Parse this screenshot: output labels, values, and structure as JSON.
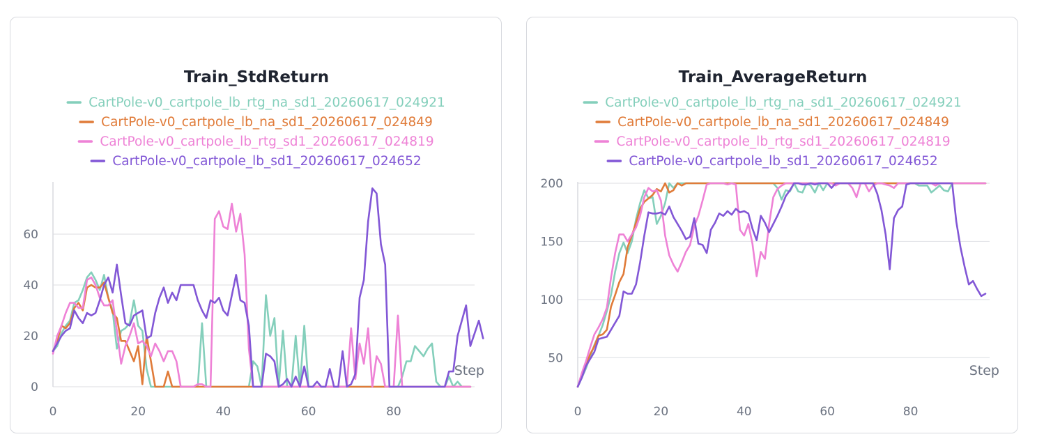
{
  "chart_data": [
    {
      "type": "line",
      "title": "Train_StdReturn",
      "xlabel": "Step",
      "ylabel": "",
      "xlim": [
        0,
        99
      ],
      "ylim": [
        0,
        80
      ],
      "xticks": [
        0,
        20,
        40,
        60,
        80
      ],
      "yticks": [
        0,
        20,
        40,
        60
      ],
      "grid": true,
      "legend_position": "top-center",
      "series": [
        {
          "name": "CartPole-v0_cartpole_lb_rtg_na_sd1_20260617_024921",
          "color": "#84cfbb",
          "x_start": 0,
          "values": [
            14,
            16,
            21,
            24,
            26,
            33,
            34,
            38,
            43,
            45,
            42,
            38,
            44,
            35,
            30,
            15,
            22,
            23,
            25,
            34,
            24,
            22,
            7,
            0,
            0,
            0,
            0,
            0,
            0,
            0,
            0,
            0,
            0,
            0,
            0,
            25,
            0,
            0,
            0,
            0,
            0,
            0,
            0,
            0,
            0,
            0,
            0,
            10,
            8,
            0,
            36,
            20,
            27,
            0,
            22,
            0,
            0,
            20,
            0,
            24,
            0,
            0,
            0,
            0,
            0,
            0,
            0,
            0,
            0,
            0,
            0,
            0,
            0,
            0,
            0,
            0,
            0,
            0,
            0,
            0,
            0,
            0,
            4,
            10,
            10,
            16,
            14,
            12,
            15,
            17,
            2,
            0,
            0,
            4,
            0,
            2,
            0,
            0,
            0
          ]
        },
        {
          "name": "CartPole-v0_cartpole_lb_na_sd1_20260617_024849",
          "color": "#e07b39",
          "x_start": 0,
          "values": [
            14,
            18,
            24,
            23,
            25,
            31,
            33,
            30,
            39,
            40,
            39,
            39,
            41,
            35,
            29,
            27,
            18,
            18,
            14,
            10,
            16,
            1,
            20,
            10,
            0,
            0,
            0,
            6,
            0,
            0,
            0,
            0,
            0,
            0,
            0,
            0,
            0,
            0,
            0,
            0,
            0,
            0,
            0,
            0,
            0,
            0,
            0,
            0,
            0,
            0,
            0,
            0,
            0,
            0,
            0,
            0,
            0,
            0,
            0,
            0,
            0,
            0,
            0,
            0,
            0,
            0,
            0,
            0,
            0,
            0,
            0,
            0,
            0,
            0,
            0,
            0,
            0,
            0,
            0,
            0,
            0,
            0,
            0,
            0,
            0,
            0,
            0,
            0,
            0,
            0,
            0,
            0,
            0,
            0,
            0,
            0,
            0,
            0,
            0
          ]
        },
        {
          "name": "CartPole-v0_cartpole_lb_rtg_sd1_20260617_024819",
          "color": "#ee82d6",
          "x_start": 0,
          "values": [
            13,
            20,
            24,
            29,
            33,
            33,
            31,
            31,
            42,
            43,
            40,
            35,
            32,
            32,
            34,
            22,
            9,
            16,
            20,
            25,
            17,
            18,
            16,
            12,
            17,
            14,
            10,
            14,
            14,
            10,
            0,
            0,
            0,
            0,
            1,
            1,
            0,
            0,
            66,
            69,
            63,
            62,
            72,
            61,
            68,
            52,
            15,
            0,
            0,
            0,
            0,
            0,
            0,
            0,
            0,
            0,
            0,
            0,
            0,
            0,
            0,
            0,
            0,
            0,
            0,
            0,
            0,
            0,
            0,
            0,
            23,
            3,
            17,
            9,
            23,
            0,
            12,
            9,
            0,
            0,
            0,
            28,
            0,
            0,
            0,
            0,
            0,
            0,
            0,
            0,
            0,
            0,
            0,
            0,
            0,
            0,
            0,
            0,
            0
          ]
        },
        {
          "name": "CartPole-v0_cartpole_lb_sd1_20260617_024652",
          "color": "#8257d6",
          "x_start": 0,
          "values": [
            14,
            17,
            20,
            22,
            23,
            30,
            27,
            25,
            29,
            28,
            29,
            34,
            40,
            43,
            37,
            48,
            36,
            25,
            24,
            28,
            29,
            30,
            19,
            20,
            29,
            35,
            39,
            33,
            37,
            34,
            40,
            40,
            40,
            40,
            34,
            30,
            27,
            34,
            33,
            35,
            30,
            28,
            36,
            44,
            34,
            33,
            24,
            0,
            0,
            0,
            13,
            12,
            10,
            0,
            1,
            3,
            0,
            4,
            0,
            8,
            0,
            0,
            2,
            0,
            0,
            7,
            0,
            0,
            14,
            0,
            1,
            5,
            35,
            42,
            65,
            78,
            76,
            56,
            48,
            0,
            0,
            0,
            0,
            0,
            0,
            0,
            0,
            0,
            0,
            0,
            0,
            0,
            0,
            6,
            6,
            20,
            26,
            32,
            16,
            21,
            26,
            19
          ]
        }
      ]
    },
    {
      "type": "line",
      "title": "Train_AverageReturn",
      "xlabel": "Step",
      "ylabel": "",
      "xlim": [
        0,
        99
      ],
      "ylim": [
        25,
        200
      ],
      "xticks": [
        0,
        20,
        40,
        60,
        80
      ],
      "yticks": [
        50,
        100,
        150,
        200
      ],
      "grid": true,
      "legend_position": "top-center",
      "series": [
        {
          "name": "CartPole-v0_cartpole_lb_rtg_na_sd1_20260617_024921",
          "color": "#84cfbb",
          "x_start": 0,
          "values": [
            25,
            33,
            41,
            51,
            61,
            69,
            78,
            90,
            104,
            124,
            140,
            149,
            140,
            150,
            169,
            183,
            194,
            187,
            188,
            165,
            172,
            183,
            200,
            196,
            200,
            200,
            200,
            200,
            200,
            200,
            200,
            200,
            200,
            200,
            200,
            200,
            200,
            200,
            200,
            200,
            200,
            200,
            200,
            200,
            200,
            200,
            200,
            200,
            196,
            186,
            194,
            193,
            200,
            193,
            192,
            200,
            198,
            192,
            200,
            194,
            200,
            200,
            200,
            200,
            200,
            200,
            200,
            200,
            200,
            200,
            200,
            200,
            200,
            200,
            200,
            200,
            200,
            200,
            200,
            200,
            200,
            200,
            198,
            198,
            198,
            192,
            195,
            198,
            194,
            193,
            200,
            200,
            200,
            200,
            200,
            200,
            200,
            200,
            200
          ]
        },
        {
          "name": "CartPole-v0_cartpole_lb_na_sd1_20260617_024849",
          "color": "#e07b39",
          "x_start": 0,
          "values": [
            25,
            35,
            44,
            53,
            60,
            69,
            70,
            74,
            94,
            104,
            115,
            122,
            145,
            155,
            166,
            178,
            184,
            187,
            190,
            195,
            193,
            200,
            192,
            194,
            200,
            198,
            200,
            200,
            200,
            200,
            200,
            200,
            200,
            200,
            200,
            200,
            200,
            200,
            200,
            200,
            200,
            200,
            200,
            200,
            200,
            200,
            200,
            200,
            200,
            200,
            200,
            200,
            200,
            200,
            200,
            200,
            200,
            200,
            200,
            200,
            200,
            200,
            200,
            200,
            200,
            200,
            200,
            200,
            200,
            200,
            200,
            200,
            200,
            200,
            200,
            200,
            200,
            200,
            200,
            200,
            200,
            200,
            200,
            200,
            200,
            200,
            200,
            200,
            200,
            200,
            200,
            200,
            200,
            200,
            200,
            200,
            200,
            200,
            200
          ]
        },
        {
          "name": "CartPole-v0_cartpole_lb_rtg_sd1_20260617_024819",
          "color": "#ee82d6",
          "x_start": 0,
          "values": [
            25,
            37,
            47,
            59,
            70,
            76,
            83,
            93,
            119,
            140,
            156,
            156,
            150,
            156,
            162,
            172,
            188,
            196,
            193,
            194,
            185,
            155,
            138,
            130,
            124,
            132,
            141,
            147,
            163,
            172,
            185,
            199,
            200,
            200,
            200,
            200,
            199,
            200,
            199,
            160,
            155,
            165,
            148,
            120,
            141,
            135,
            165,
            188,
            195,
            198,
            200,
            200,
            200,
            200,
            200,
            200,
            200,
            200,
            200,
            200,
            200,
            200,
            198,
            200,
            200,
            200,
            196,
            188,
            200,
            200,
            193,
            198,
            200,
            200,
            199,
            198,
            196,
            200,
            200,
            200,
            200,
            200,
            200,
            200,
            200,
            200,
            198,
            200,
            200,
            200,
            200,
            200,
            200,
            200,
            200,
            200,
            200,
            200,
            200
          ]
        },
        {
          "name": "CartPole-v0_cartpole_lb_sd1_20260617_024652",
          "color": "#8257d6",
          "x_start": 0,
          "values": [
            25,
            33,
            43,
            49,
            55,
            66,
            67,
            68,
            74,
            80,
            86,
            107,
            105,
            105,
            113,
            132,
            155,
            175,
            174,
            174,
            175,
            173,
            180,
            171,
            165,
            159,
            152,
            154,
            170,
            148,
            147,
            140,
            160,
            166,
            174,
            172,
            176,
            173,
            178,
            175,
            176,
            174,
            161,
            151,
            172,
            166,
            158,
            165,
            172,
            180,
            189,
            194,
            200,
            200,
            199,
            199,
            200,
            199,
            200,
            200,
            200,
            196,
            200,
            200,
            200,
            200,
            200,
            200,
            200,
            200,
            200,
            200,
            191,
            177,
            156,
            126,
            170,
            177,
            180,
            199,
            200,
            200,
            200,
            200,
            200,
            200,
            200,
            200,
            200,
            200,
            200,
            167,
            145,
            128,
            113,
            116,
            109,
            103,
            105
          ]
        }
      ]
    }
  ]
}
